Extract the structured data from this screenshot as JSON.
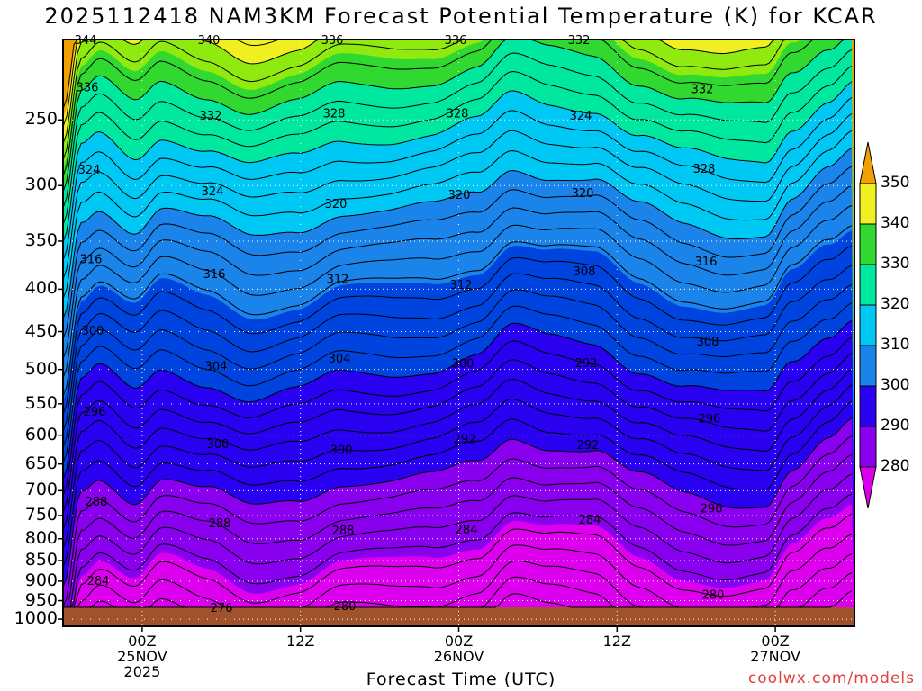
{
  "chart_data": {
    "type": "contour",
    "title": "2025112418 NAM3KM Forecast Potential Temperature (K) for KCAR",
    "xlabel": "Forecast Time (UTC)",
    "ylabel": "",
    "y_scale": "log (pressure)",
    "y_ticks": [
      250,
      300,
      350,
      400,
      450,
      500,
      550,
      600,
      650,
      700,
      750,
      800,
      850,
      900,
      950,
      1000
    ],
    "ylim": [
      200,
      1020
    ],
    "x_ticks": [
      {
        "line1": "00Z",
        "line2": "25NOV",
        "line3": "2025"
      },
      {
        "line1": "12Z",
        "line2": "",
        "line3": ""
      },
      {
        "line1": "00Z",
        "line2": "26NOV",
        "line3": ""
      },
      {
        "line1": "12Z",
        "line2": "",
        "line3": ""
      },
      {
        "line1": "00Z",
        "line2": "27NOV",
        "line3": ""
      }
    ],
    "x_tick_hours": [
      6,
      18,
      30,
      42,
      54
    ],
    "xlim_hours": [
      0,
      60
    ],
    "colorbar": {
      "levels": [
        280,
        290,
        300,
        310,
        320,
        330,
        340,
        350
      ],
      "colors": [
        "#dd00ee",
        "#8800ee",
        "#2a00f0",
        "#0044e0",
        "#1a84ea",
        "#00c8f4",
        "#00e8a0",
        "#30d830",
        "#90ea10",
        "#f0f020",
        "#f0a000"
      ]
    },
    "contour_labels": [
      "344",
      "340",
      "336",
      "336",
      "332",
      "332",
      "336",
      "332",
      "328",
      "328",
      "324",
      "328",
      "324",
      "324",
      "320",
      "320",
      "320",
      "316",
      "316",
      "316",
      "312",
      "312",
      "308",
      "308",
      "300",
      "304",
      "304",
      "300",
      "292",
      "296",
      "296",
      "300",
      "300",
      "292",
      "292",
      "296",
      "288",
      "288",
      "288",
      "284",
      "284",
      "280",
      "284",
      "276",
      "280"
    ],
    "ground_color": "#a0522d",
    "series": [
      {
        "name": "",
        "x_hours": [
          0,
          6,
          12,
          18,
          24,
          30,
          36,
          42,
          48,
          54,
          60
        ],
        "values": [
          324,
          322,
          318,
          318,
          322,
          318,
          322,
          320,
          318,
          316,
          324
        ]
      }
    ]
  },
  "footer": {
    "credit": "coolwx.com/models"
  }
}
